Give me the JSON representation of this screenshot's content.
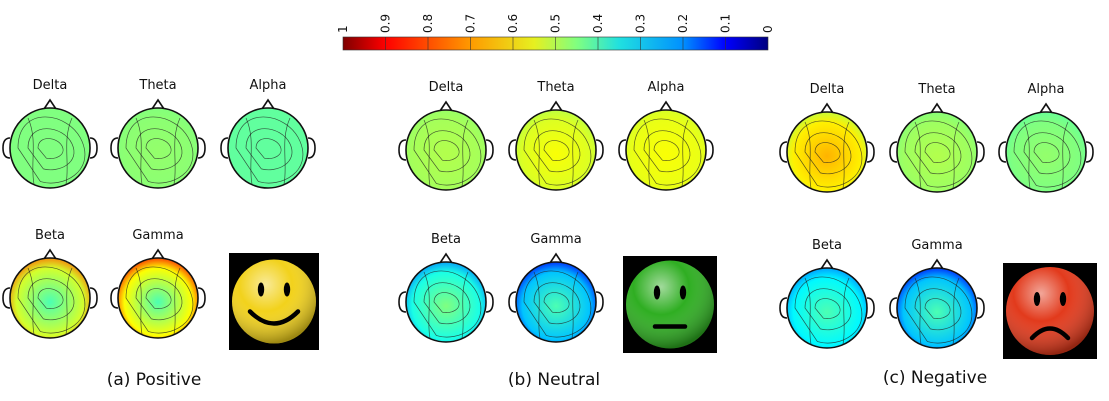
{
  "colorbar": {
    "ticks": [
      "1",
      "0.9",
      "0.8",
      "0.7",
      "0.6",
      "0.5",
      "0.4",
      "0.3",
      "0.2",
      "0.1",
      "0"
    ],
    "colormap": "jet-reversed (1 = dark red, 0 = dark blue)"
  },
  "panels": [
    {
      "caption": "(a) Positive",
      "emoji": "smiling-face",
      "emoji_color": "#f2d21c",
      "bands": [
        {
          "label": "Delta",
          "center_value": 0.5,
          "temporal_value": 0.5
        },
        {
          "label": "Theta",
          "center_value": 0.52,
          "temporal_value": 0.5
        },
        {
          "label": "Alpha",
          "center_value": 0.47,
          "temporal_value": 0.47
        },
        {
          "label": "Beta",
          "center_value": 0.45,
          "temporal_value": 0.78
        },
        {
          "label": "Gamma",
          "center_value": 0.45,
          "temporal_value": 0.88
        }
      ]
    },
    {
      "caption": "(b) Neutral",
      "emoji": "neutral-face",
      "emoji_color": "#2fae22",
      "bands": [
        {
          "label": "Delta",
          "center_value": 0.55,
          "temporal_value": 0.52
        },
        {
          "label": "Theta",
          "center_value": 0.62,
          "temporal_value": 0.55
        },
        {
          "label": "Alpha",
          "center_value": 0.62,
          "temporal_value": 0.58
        },
        {
          "label": "Beta",
          "center_value": 0.5,
          "temporal_value": 0.25
        },
        {
          "label": "Gamma",
          "center_value": 0.45,
          "temporal_value": 0.12
        }
      ]
    },
    {
      "caption": "(c) Negative",
      "emoji": "frowning-face",
      "emoji_color": "#e23a1c",
      "bands": [
        {
          "label": "Delta",
          "center_value": 0.7,
          "temporal_value": 0.55
        },
        {
          "label": "Theta",
          "center_value": 0.55,
          "temporal_value": 0.5
        },
        {
          "label": "Alpha",
          "center_value": 0.52,
          "temporal_value": 0.47
        },
        {
          "label": "Beta",
          "center_value": 0.45,
          "temporal_value": 0.25
        },
        {
          "label": "Gamma",
          "center_value": 0.45,
          "temporal_value": 0.12
        }
      ]
    }
  ]
}
